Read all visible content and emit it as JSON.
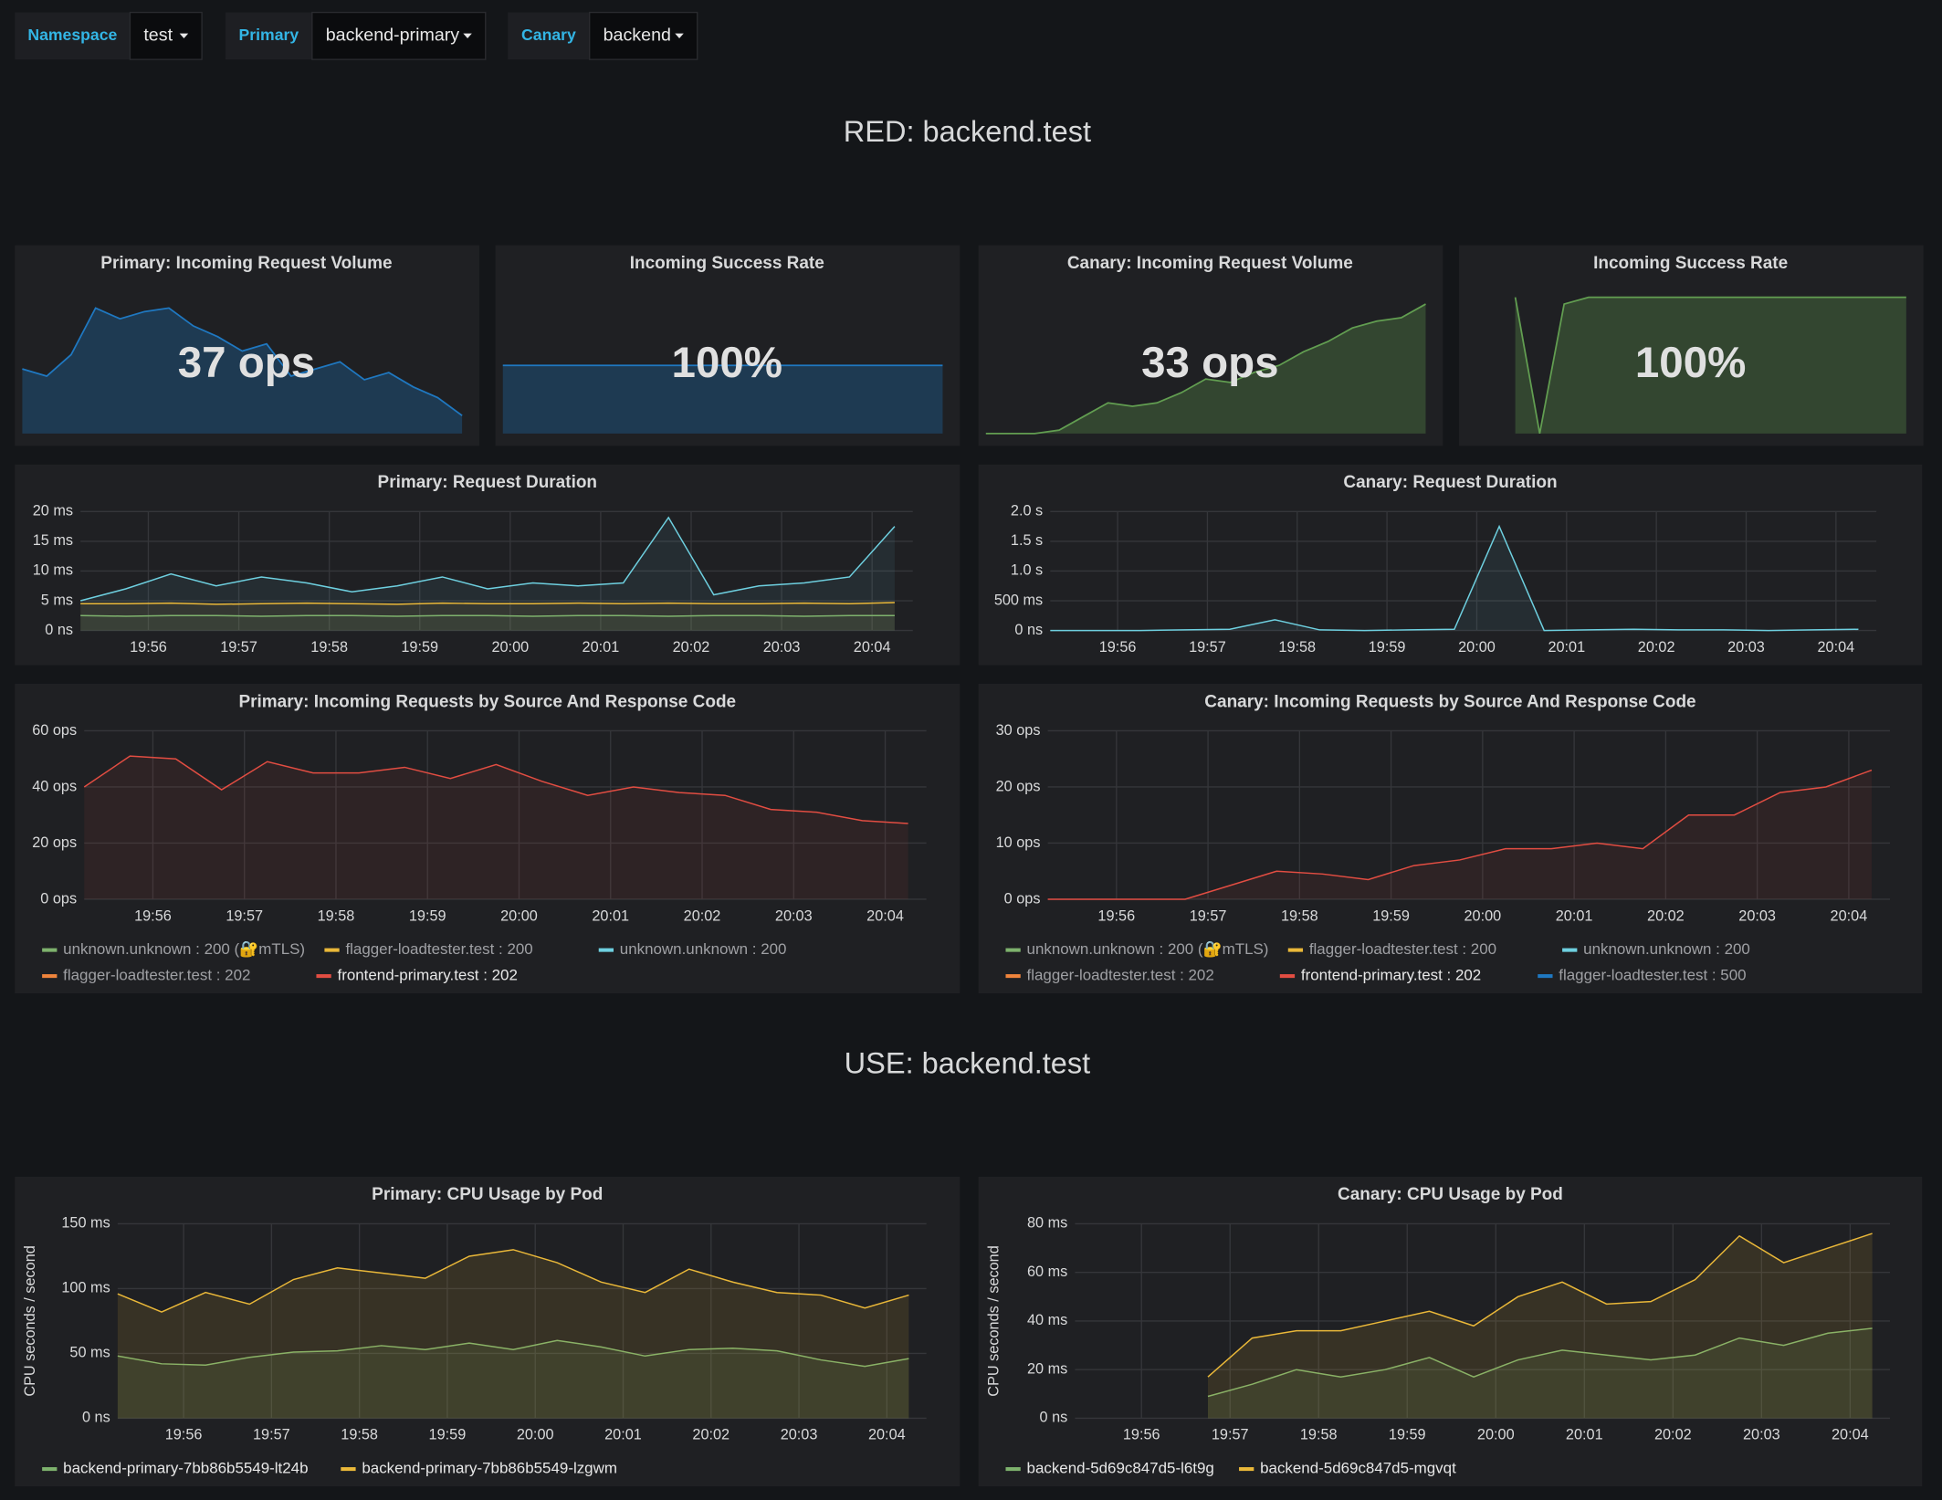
{
  "variables": [
    {
      "label": "Namespace",
      "value": "test"
    },
    {
      "label": "Primary",
      "value": "backend-primary"
    },
    {
      "label": "Canary",
      "value": "backend"
    }
  ],
  "rows": [
    {
      "title": "RED: backend.test"
    },
    {
      "title": "USE: backend.test"
    }
  ],
  "time": {
    "x": [
      1195.25,
      1195.75,
      1196.25,
      1196.75,
      1197.25,
      1197.75,
      1198.25,
      1198.75,
      1199.25,
      1199.75,
      1200.25,
      1200.75,
      1201.25,
      1201.75,
      1202.25,
      1202.75,
      1203.25,
      1203.75,
      1204.25
    ],
    "xlim": [
      1195.25,
      1204.45
    ],
    "xticks": [
      {
        "value": 1196,
        "label": "19:56"
      },
      {
        "value": 1197,
        "label": "19:57"
      },
      {
        "value": 1198,
        "label": "19:58"
      },
      {
        "value": 1199,
        "label": "19:59"
      },
      {
        "value": 1200,
        "label": "20:00"
      },
      {
        "value": 1201,
        "label": "20:01"
      },
      {
        "value": 1202,
        "label": "20:02"
      },
      {
        "value": 1203,
        "label": "20:03"
      },
      {
        "value": 1204,
        "label": "20:04"
      }
    ]
  },
  "stats": [
    {
      "title": "Primary: Incoming Request Volume",
      "value_label": "37 ops",
      "color": "#1f78c1",
      "ylim": [
        10,
        48
      ],
      "values": [
        28,
        26,
        32,
        45,
        42,
        44,
        45,
        40,
        37,
        33,
        35,
        26,
        28,
        30,
        25,
        27,
        23,
        20,
        15
      ]
    },
    {
      "title": "Incoming Success Rate",
      "value_label": "100%",
      "color": "#1f78c1",
      "ylim": [
        0,
        200
      ],
      "values": [
        100,
        100,
        100,
        100,
        100,
        100,
        100,
        100,
        100,
        100,
        100,
        100,
        100,
        100,
        100,
        100,
        100,
        100,
        100
      ]
    },
    {
      "title": "Canary: Incoming Request Volume",
      "value_label": "33 ops",
      "color": "#629e51",
      "ylim": [
        0,
        40
      ],
      "values": [
        0,
        0,
        0,
        1,
        5,
        9,
        8,
        9,
        12,
        16,
        15,
        18,
        20,
        24,
        27,
        31,
        33,
        34,
        38
      ]
    },
    {
      "title": "Incoming Success Rate",
      "value_label": "100%",
      "color": "#629e51",
      "ylim": [
        0,
        100
      ],
      "values": [
        null,
        null,
        100,
        0,
        95,
        100,
        100,
        100,
        100,
        100,
        100,
        100,
        100,
        100,
        100,
        100,
        100,
        100,
        100
      ]
    }
  ],
  "graphs": [
    {
      "type": "line",
      "title": "Primary: Request Duration",
      "ylim": [
        0,
        20
      ],
      "yticks": [
        {
          "value": 0,
          "label": "0 ns"
        },
        {
          "value": 5,
          "label": "5 ms"
        },
        {
          "value": 10,
          "label": "10 ms"
        },
        {
          "value": 15,
          "label": "15 ms"
        },
        {
          "value": 20,
          "label": "20 ms"
        }
      ],
      "grid": true,
      "series": [
        {
          "color": "#6ed0e0",
          "values": [
            5,
            7,
            9.5,
            7.5,
            9,
            8,
            6.5,
            7.5,
            9,
            7,
            8,
            7.5,
            8,
            19,
            6,
            7.5,
            8,
            9,
            17.5
          ]
        },
        {
          "color": "#eab839",
          "values": [
            4.5,
            4.5,
            4.6,
            4.4,
            4.5,
            4.6,
            4.5,
            4.4,
            4.6,
            4.5,
            4.5,
            4.6,
            4.5,
            4.6,
            4.5,
            4.5,
            4.6,
            4.5,
            4.7
          ]
        },
        {
          "color": "#7eb26d",
          "values": [
            2.5,
            2.4,
            2.5,
            2.5,
            2.4,
            2.5,
            2.5,
            2.4,
            2.5,
            2.5,
            2.4,
            2.5,
            2.5,
            2.4,
            2.5,
            2.5,
            2.4,
            2.5,
            2.5
          ]
        }
      ]
    },
    {
      "type": "line",
      "title": "Canary: Request Duration",
      "ylim": [
        0,
        2
      ],
      "yticks": [
        {
          "value": 0,
          "label": "0 ns"
        },
        {
          "value": 0.5,
          "label": "500 ms"
        },
        {
          "value": 1,
          "label": "1.0 s"
        },
        {
          "value": 1.5,
          "label": "1.5 s"
        },
        {
          "value": 2,
          "label": "2.0 s"
        }
      ],
      "grid": true,
      "series": [
        {
          "color": "#6ed0e0",
          "values": [
            0,
            0,
            0,
            0.01,
            0.02,
            0.18,
            0.01,
            0,
            0.01,
            0.02,
            1.75,
            0,
            0.01,
            0.02,
            0.01,
            0.01,
            0,
            0.01,
            0.02
          ]
        }
      ]
    },
    {
      "type": "line",
      "title": "Primary: Incoming Requests by Source And Response Code",
      "ylim": [
        0,
        60
      ],
      "yticks": [
        {
          "value": 0,
          "label": "0 ops"
        },
        {
          "value": 20,
          "label": "20 ops"
        },
        {
          "value": 40,
          "label": "40 ops"
        },
        {
          "value": 60,
          "label": "60 ops"
        }
      ],
      "grid": true,
      "series": [
        {
          "name": "unknown.unknown : 200 (🔐mTLS)",
          "color": "#7eb26d"
        },
        {
          "name": "flagger-loadtester.test : 200",
          "color": "#eab839"
        },
        {
          "name": "unknown.unknown : 200",
          "color": "#6ed0e0"
        },
        {
          "name": "flagger-loadtester.test : 202",
          "color": "#ef843c"
        },
        {
          "name": "frontend-primary.test : 202",
          "color": "#e24d42",
          "values": [
            40,
            51,
            50,
            39,
            49,
            45,
            45,
            47,
            43,
            48,
            42,
            37,
            40,
            38,
            37,
            32,
            31,
            28,
            27
          ]
        }
      ]
    },
    {
      "type": "line",
      "title": "Canary: Incoming Requests by Source And Response Code",
      "ylim": [
        0,
        30
      ],
      "yticks": [
        {
          "value": 0,
          "label": "0 ops"
        },
        {
          "value": 10,
          "label": "10 ops"
        },
        {
          "value": 20,
          "label": "20 ops"
        },
        {
          "value": 30,
          "label": "30 ops"
        }
      ],
      "grid": true,
      "series": [
        {
          "name": "unknown.unknown : 200 (🔐mTLS)",
          "color": "#7eb26d"
        },
        {
          "name": "flagger-loadtester.test : 200",
          "color": "#eab839"
        },
        {
          "name": "unknown.unknown : 200",
          "color": "#6ed0e0"
        },
        {
          "name": "flagger-loadtester.test : 202",
          "color": "#ef843c"
        },
        {
          "name": "frontend-primary.test : 202",
          "color": "#e24d42",
          "values": [
            0,
            0,
            0,
            0,
            2.5,
            5,
            4.5,
            3.5,
            6,
            7,
            9,
            9,
            10,
            9,
            15,
            15,
            19,
            20,
            23
          ]
        },
        {
          "name": "flagger-loadtester.test : 500",
          "color": "#1f78c1"
        }
      ]
    },
    {
      "type": "area",
      "title": "Primary: CPU Usage by Pod",
      "ylabel": "CPU seconds / second",
      "ylim": [
        0,
        150
      ],
      "yticks": [
        {
          "value": 0,
          "label": "0 ns"
        },
        {
          "value": 50,
          "label": "50 ms"
        },
        {
          "value": 100,
          "label": "100 ms"
        },
        {
          "value": 150,
          "label": "150 ms"
        }
      ],
      "grid": true,
      "series": [
        {
          "name": "backend-primary-7bb86b5549-lt24b",
          "color": "#7eb26d",
          "values": [
            48,
            42,
            41,
            47,
            51,
            52,
            56,
            53,
            58,
            53,
            60,
            55,
            48,
            53,
            54,
            52,
            45,
            40,
            46
          ]
        },
        {
          "name": "backend-primary-7bb86b5549-lzgwm",
          "color": "#eab839",
          "values": [
            96,
            82,
            97,
            88,
            107,
            116,
            112,
            108,
            125,
            130,
            120,
            105,
            97,
            115,
            105,
            97,
            95,
            85,
            95
          ]
        }
      ]
    },
    {
      "type": "area",
      "title": "Canary: CPU Usage by Pod",
      "ylabel": "CPU seconds / second",
      "ylim": [
        0,
        80
      ],
      "yticks": [
        {
          "value": 0,
          "label": "0 ns"
        },
        {
          "value": 20,
          "label": "20 ms"
        },
        {
          "value": 40,
          "label": "40 ms"
        },
        {
          "value": 60,
          "label": "60 ms"
        },
        {
          "value": 80,
          "label": "80 ms"
        }
      ],
      "grid": true,
      "series": [
        {
          "name": "backend-5d69c847d5-l6t9g",
          "color": "#7eb26d",
          "values": [
            null,
            null,
            null,
            9,
            14,
            20,
            17,
            20,
            25,
            17,
            24,
            28,
            26,
            24,
            26,
            33,
            30,
            35,
            37
          ]
        },
        {
          "name": "backend-5d69c847d5-mgvqt",
          "color": "#eab839",
          "values": [
            null,
            null,
            null,
            17,
            33,
            36,
            36,
            40,
            44,
            38,
            50,
            56,
            47,
            48,
            57,
            75,
            64,
            70,
            76
          ]
        }
      ]
    }
  ]
}
